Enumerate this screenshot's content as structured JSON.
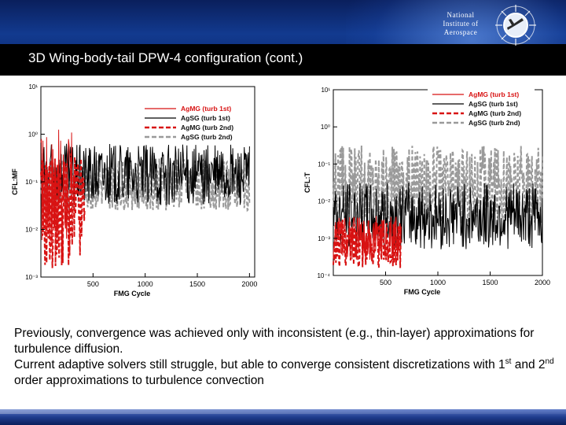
{
  "slide": {
    "title": "3D Wing-body-tail DPW-4 configuration (cont.)",
    "logo": {
      "line1": "National",
      "line2": "Institute of",
      "line3": "Aerospace"
    },
    "paragraph1": "Previously, convergence was achieved only with inconsistent (e.g., thin-layer) approximations for turbulence diffusion.",
    "paragraph2_part1": "Current adaptive solvers still struggle, but able to converge consistent discretizations with 1",
    "sup1": "st",
    "paragraph2_part2": " and 2",
    "sup2": "nd",
    "paragraph2_part3": " order approximations to turbulence convection"
  },
  "colors": {
    "red": "#d81313",
    "black": "#000000",
    "gray": "#9a9a9a",
    "header_blue": "#123a8f"
  },
  "chart_data": [
    {
      "type": "line",
      "xlabel": "FMG Cycle",
      "ylabel": "CFL:MF",
      "xlim": [
        0,
        2050
      ],
      "xticks": [
        500,
        1000,
        1500,
        2000
      ],
      "yscale": "log",
      "ylim_exponents": [
        -3,
        1
      ],
      "ytick_labels": [
        "10⁻³",
        "10⁻²",
        "10⁻¹",
        "10⁰",
        "10¹"
      ],
      "legend_position": "top-right",
      "series": [
        {
          "name": "AgMG (turb 1st)",
          "color": "#d81313",
          "dash": "solid",
          "x_range": [
            0,
            300
          ],
          "log_range": [
            -2.4,
            0.1
          ]
        },
        {
          "name": "AgSG (turb 1st)",
          "color": "#000000",
          "dash": "solid",
          "x_range": [
            0,
            2000
          ],
          "log_range": [
            -1.5,
            -0.2
          ]
        },
        {
          "name": "AgMG (turb 2nd)",
          "color": "#d81313",
          "dash": "dashed",
          "x_range": [
            0,
            420
          ],
          "log_range": [
            -2.9,
            -0.4
          ]
        },
        {
          "name": "AgSG (turb 2nd)",
          "color": "#9a9a9a",
          "dash": "dashed",
          "x_range": [
            0,
            2000
          ],
          "log_range": [
            -1.6,
            -0.5
          ]
        }
      ]
    },
    {
      "type": "line",
      "xlabel": "FMG Cycle",
      "ylabel": "CFL:T",
      "xlim": [
        0,
        2000
      ],
      "xticks": [
        500,
        1000,
        1500,
        2000
      ],
      "yscale": "log",
      "ylim_exponents": [
        -4,
        1
      ],
      "ytick_labels": [
        "10⁻⁴",
        "10⁻³",
        "10⁻²",
        "10⁻¹",
        "10⁰",
        "10¹"
      ],
      "legend_position": "top-right",
      "series": [
        {
          "name": "AgMG (turb 1st)",
          "color": "#d81313",
          "dash": "solid",
          "x_range": [
            0,
            650
          ],
          "log_range": [
            -3.6,
            -2.4
          ]
        },
        {
          "name": "AgSG (turb 1st)",
          "color": "#000000",
          "dash": "solid",
          "x_range": [
            0,
            2000
          ],
          "log_range": [
            -3.3,
            -1.5
          ]
        },
        {
          "name": "AgMG (turb 2nd)",
          "color": "#d81313",
          "dash": "dashed",
          "x_range": [
            0,
            650
          ],
          "log_range": [
            -3.8,
            -2.5
          ]
        },
        {
          "name": "AgSG (turb 2nd)",
          "color": "#9a9a9a",
          "dash": "dashed",
          "x_range": [
            0,
            2000
          ],
          "log_range": [
            -2.6,
            -0.5
          ]
        }
      ]
    }
  ]
}
